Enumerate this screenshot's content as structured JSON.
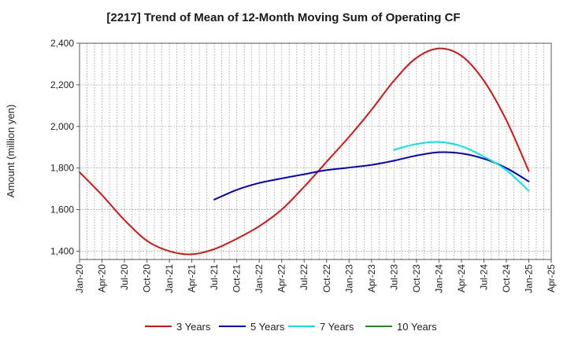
{
  "chart_data": {
    "type": "line",
    "title": "[2217]  Trend of Mean of 12-Month Moving Sum of Operating CF",
    "xlabel": "",
    "ylabel": "Amount (million yen)",
    "ylim": [
      1360,
      2400
    ],
    "yticks": [
      1400,
      1600,
      1800,
      2000,
      2200,
      2400
    ],
    "ytick_labels": [
      "1,400",
      "1,600",
      "1,800",
      "2,000",
      "2,200",
      "2,400"
    ],
    "x_categories": [
      "Jan-20",
      "Apr-20",
      "Jul-20",
      "Oct-20",
      "Jan-21",
      "Apr-21",
      "Jul-21",
      "Oct-21",
      "Jan-22",
      "Apr-22",
      "Jul-22",
      "Oct-22",
      "Jan-23",
      "Apr-23",
      "Jul-23",
      "Oct-23",
      "Jan-24",
      "Apr-24",
      "Jul-24",
      "Oct-24",
      "Jan-25",
      "Apr-25"
    ],
    "grid": true,
    "legend_position": "bottom",
    "series": [
      {
        "name": "3 Years",
        "color": "#dd1111",
        "points": [
          [
            0,
            1780
          ],
          [
            1,
            1670
          ],
          [
            2,
            1550
          ],
          [
            3,
            1450
          ],
          [
            4,
            1400
          ],
          [
            5,
            1385
          ],
          [
            6,
            1410
          ],
          [
            7,
            1460
          ],
          [
            8,
            1520
          ],
          [
            9,
            1600
          ],
          [
            10,
            1710
          ],
          [
            11,
            1830
          ],
          [
            12,
            1950
          ],
          [
            13,
            2080
          ],
          [
            14,
            2220
          ],
          [
            15,
            2330
          ],
          [
            16,
            2375
          ],
          [
            17,
            2340
          ],
          [
            18,
            2220
          ],
          [
            19,
            2030
          ],
          [
            20,
            1785
          ]
        ]
      },
      {
        "name": "5 Years",
        "color": "#0000cc",
        "points": [
          [
            6,
            1648
          ],
          [
            7,
            1695
          ],
          [
            8,
            1728
          ],
          [
            9,
            1750
          ],
          [
            10,
            1770
          ],
          [
            11,
            1790
          ],
          [
            12,
            1802
          ],
          [
            13,
            1815
          ],
          [
            14,
            1835
          ],
          [
            15,
            1860
          ],
          [
            16,
            1876
          ],
          [
            17,
            1870
          ],
          [
            18,
            1845
          ],
          [
            19,
            1800
          ],
          [
            20,
            1735
          ]
        ]
      },
      {
        "name": "7 Years",
        "color": "#00e5ee",
        "points": [
          [
            14,
            1888
          ],
          [
            15,
            1915
          ],
          [
            16,
            1925
          ],
          [
            17,
            1905
          ],
          [
            18,
            1855
          ],
          [
            19,
            1790
          ],
          [
            20,
            1690
          ]
        ]
      },
      {
        "name": "10 Years",
        "color": "#228b22",
        "points": []
      }
    ]
  }
}
